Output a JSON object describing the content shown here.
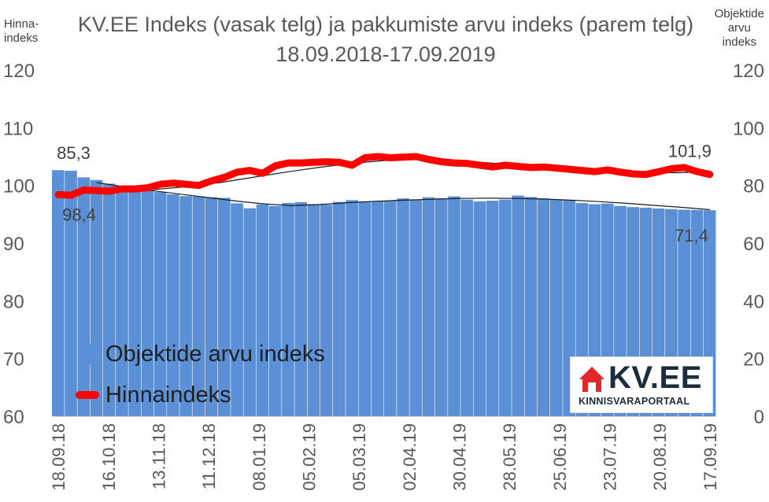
{
  "chart_data": {
    "type": "bar+line",
    "title": "KV.EE Indeks (vasak telg) ja pakkumiste arvu indeks (parem telg) 18.09.2018-17.09.2019",
    "left_axis": {
      "title": "Hinna-indeks",
      "ylim": [
        60,
        120
      ],
      "ticks": [
        "60",
        "70",
        "80",
        "90",
        "100",
        "110",
        "120"
      ]
    },
    "right_axis": {
      "title": "Objektide arvu indeks",
      "ylim": [
        0,
        120
      ],
      "ticks": [
        "0",
        "20",
        "40",
        "60",
        "80",
        "100",
        "120"
      ]
    },
    "x_tick_labels": [
      "18.09.18",
      "16.10.18",
      "13.11.18",
      "11.12.18",
      "08.01.19",
      "05.02.19",
      "05.03.19",
      "02.04.19",
      "30.04.19",
      "28.05.19",
      "25.06.19",
      "23.07.19",
      "20.08.19",
      "17.09.19"
    ],
    "series": [
      {
        "name": "Objektide arvu indeks",
        "axis": "right",
        "kind": "bar",
        "color": "#5b8fd6",
        "values": [
          85.3,
          85.1,
          82.8,
          81.9,
          80.6,
          79.8,
          79.0,
          78.5,
          77.7,
          76.9,
          76.3,
          76.2,
          75.9,
          75.7,
          73.8,
          72.1,
          73.4,
          72.9,
          73.9,
          74.2,
          73.5,
          73.3,
          74.3,
          74.9,
          74.5,
          74.6,
          74.7,
          75.5,
          75.1,
          75.9,
          75.6,
          76.2,
          75.1,
          74.5,
          74.7,
          75.1,
          76.5,
          76.0,
          75.5,
          75.1,
          74.8,
          73.9,
          73.5,
          73.7,
          72.9,
          72.5,
          72.3,
          72.0,
          71.8,
          71.6,
          71.5,
          71.4
        ]
      },
      {
        "name": "Hinnaindeks",
        "axis": "left",
        "kind": "line",
        "color": "#ff0000",
        "values": [
          98.4,
          98.3,
          99.2,
          99.1,
          99.0,
          99.4,
          99.4,
          99.6,
          100.2,
          100.4,
          100.2,
          100.0,
          100.8,
          101.4,
          102.3,
          102.6,
          102.1,
          103.4,
          103.9,
          103.9,
          104.0,
          104.1,
          104.0,
          103.5,
          104.8,
          105.0,
          104.8,
          104.9,
          105.0,
          104.5,
          104.1,
          103.9,
          103.8,
          103.5,
          103.2,
          103.5,
          103.3,
          103.1,
          103.2,
          103.0,
          102.8,
          102.6,
          102.4,
          102.7,
          102.3,
          102.0,
          101.9,
          102.4,
          102.9,
          103.1,
          102.4,
          101.9
        ]
      }
    ],
    "trendlines": [
      {
        "axis": "right",
        "color": "#1a1a1a",
        "from_index": 3,
        "values": [
          81.0,
          79.5,
          78.2,
          77.0,
          75.8,
          74.6,
          73.6,
          73.0,
          73.4,
          74.0,
          74.5,
          74.9,
          75.2,
          75.5,
          75.6,
          75.5,
          75.3,
          74.9,
          74.4,
          73.8,
          73.1,
          72.4,
          71.6
        ]
      },
      {
        "axis": "left",
        "color": "#1a1a1a",
        "from_index": 5,
        "values": [
          99.0,
          99.3,
          99.8,
          100.5,
          101.4,
          102.3,
          103.1,
          103.8,
          104.3,
          104.5,
          104.3,
          104.0,
          103.6,
          103.2,
          102.9,
          102.5,
          102.2,
          102.2,
          102.4
        ]
      }
    ],
    "annotations": [
      {
        "text": "85,3",
        "series": "Objektide arvu indeks",
        "point": "first"
      },
      {
        "text": "98,4",
        "series": "Hinnaindeks",
        "point": "first"
      },
      {
        "text": "101,9",
        "series": "Hinnaindeks",
        "point": "last"
      },
      {
        "text": "71,4",
        "series": "Objektide arvu indeks",
        "point": "last"
      }
    ],
    "legend": {
      "position": "bottom-left",
      "entries": [
        "Objektide arvu indeks",
        "Hinnaindeks"
      ]
    },
    "grid": false
  },
  "logo": {
    "text": "KV.EE",
    "subtitle": "KINNISVARAPORTAAL"
  }
}
